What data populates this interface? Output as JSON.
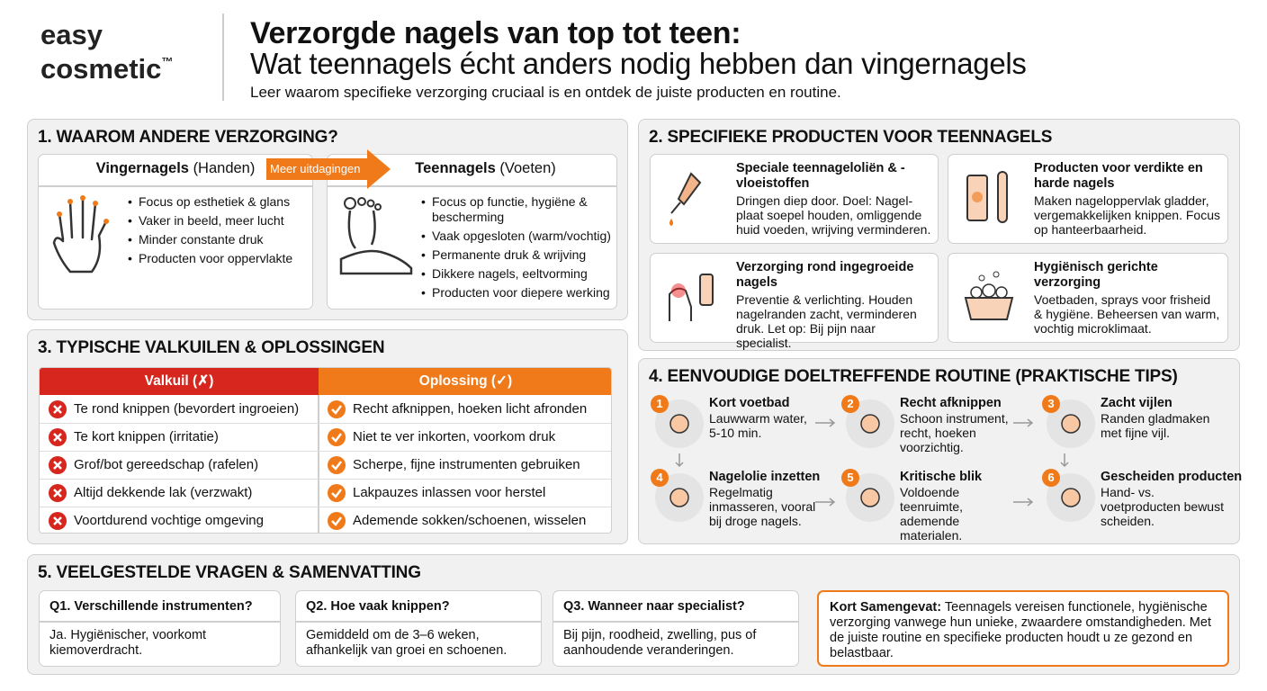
{
  "header": {
    "logo_line1": "easy",
    "logo_line2": "cosmetic",
    "logo_tm": "™",
    "title": "Verzorgde nagels van top tot teen:",
    "subtitle": "Wat teennagels écht anders nodig hebben dan vingernagels",
    "intro": "Leer waarom specifieke verzorging cruciaal is en ontdek de juiste producten en routine."
  },
  "section1": {
    "title": "1.  WAAROM ANDERE VERZORGING?",
    "left": {
      "name": "Vingernagels",
      "sub": "(Handen)",
      "items": [
        "Focus op esthetiek & glans",
        "Vaker in beeld, meer lucht",
        "Minder constante druk",
        "Producten voor oppervlakte"
      ]
    },
    "arrow": "Meer uitdagingen",
    "right": {
      "name": "Teennagels",
      "sub": "(Voeten)",
      "items": [
        "Focus op functie, hygiëne & bescherming",
        "Vaak opgesloten (warm/vochtig)",
        "Permanente druk & wrijving",
        "Dikkere nagels, eeltvorming",
        "Producten voor diepere werking"
      ]
    }
  },
  "section2": {
    "title": "2.  SPECIFIEKE PRODUCTEN VOOR TEENNAGELS",
    "cards": [
      {
        "title": "Speciale teennageloliën & -vloeistoffen",
        "text": "Dringen diep door. Doel: Nagel-plaat soepel houden, omliggende huid voeden, wrijving verminderen."
      },
      {
        "title": "Producten voor verdikte en harde nagels",
        "text": "Maken nageloppervlak gladder, vergemakkelijken knippen. Focus op hanteerbaarheid."
      },
      {
        "title": "Verzorging rond ingegroeide nagels",
        "text": "Preventie & verlichting. Houden nagelranden zacht, verminderen druk. Let op: Bij pijn naar specialist."
      },
      {
        "title": "Hygiënisch gerichte verzorging",
        "text": "Voetbaden, sprays voor frisheid & hygiëne. Beheersen van warm, vochtig microklimaat."
      }
    ]
  },
  "section3": {
    "title": "3.  TYPISCHE VALKUILEN & OPLOSSINGEN",
    "headers": [
      "Valkuil (✗)",
      "Oplossing (✓)"
    ],
    "rows": [
      [
        "Te rond knippen (bevordert ingroeien)",
        "Recht afknippen, hoeken licht afronden"
      ],
      [
        "Te kort knippen (irritatie)",
        "Niet te ver inkorten, voorkom druk"
      ],
      [
        "Grof/bot gereedschap (rafelen)",
        "Scherpe, fijne instrumenten gebruiken"
      ],
      [
        "Altijd dekkende lak (verzwakt)",
        "Lakpauzes inlassen voor herstel"
      ],
      [
        "Voortdurend vochtige omgeving",
        "Ademende sokken/schoenen, wisselen"
      ]
    ]
  },
  "section4": {
    "title": "4.  EENVOUDIGE DOELTREFFENDE ROUTINE (PRAKTISCHE TIPS)",
    "steps": [
      {
        "num": "1",
        "title": "Kort voetbad",
        "text": "Lauwwarm water, 5-10 min."
      },
      {
        "num": "2",
        "title": "Recht afknippen",
        "text": "Schoon instrument, recht, hoeken voorzichtig."
      },
      {
        "num": "3",
        "title": "Zacht vijlen",
        "text": "Randen gladmaken met fijne vijl."
      },
      {
        "num": "4",
        "title": "Nagelolie inzetten",
        "text": "Regelmatig inmasseren, vooral bij droge nagels."
      },
      {
        "num": "5",
        "title": "Kritische blik",
        "text": "Voldoende teenruimte, ademende materialen."
      },
      {
        "num": "6",
        "title": "Gescheiden producten",
        "text": "Hand- vs. voetproducten bewust scheiden."
      }
    ]
  },
  "section5": {
    "title": "5.  VEELGESTELDE VRAGEN & SAMENVATTING",
    "faq": [
      {
        "q": "Q1. Verschillende instrumenten?",
        "a": "Ja. Hygiënischer, voorkomt kiemoverdracht."
      },
      {
        "q": "Q2. Hoe vaak knippen?",
        "a": "Gemiddeld om de 3–6 weken, afhankelijk van groei en schoenen."
      },
      {
        "q": "Q3. Wanneer naar specialist?",
        "a": "Bij pijn, roodheid, zwelling, pus of aanhoudende veranderingen."
      }
    ],
    "summary": {
      "label": "Kort Samengevat:",
      "text": "Teennagels vereisen functionele, hygiënische verzorging vanwege hun unieke, zwaardere omstandigheden. Met de juiste routine en specifieke producten houdt u ze gezond en belastbaar."
    }
  }
}
